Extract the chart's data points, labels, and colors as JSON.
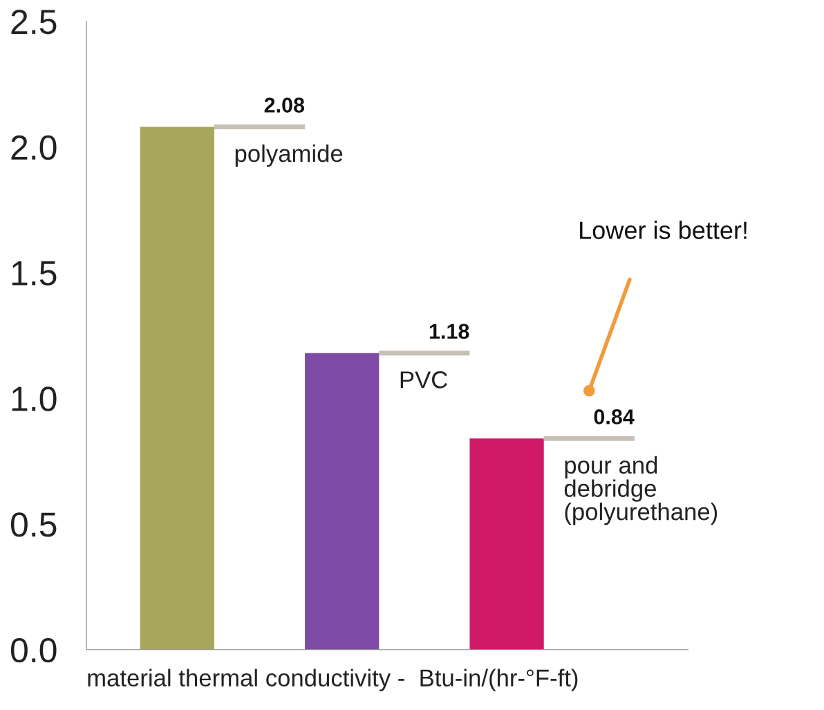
{
  "chart_data": {
    "type": "bar",
    "categories": [
      null,
      null,
      null
    ],
    "values": [
      2.08,
      1.18,
      0.84
    ],
    "colors": [
      "#a8a65c",
      "#7e4ba6",
      "#d01a68"
    ],
    "data_labels": true,
    "xlabel": "material thermal conductivity -  Btu-in/(hr-°F-ft)",
    "ylim": [
      0,
      2.5
    ],
    "yticks": [
      {
        "value": 0,
        "label": "0.0"
      },
      {
        "value": 0.5,
        "label": "0.5"
      },
      {
        "value": 1,
        "label": "1.0"
      },
      {
        "value": 1.5,
        "label": "1.5"
      },
      {
        "value": 2,
        "label": "2.0"
      },
      {
        "value": 2.5,
        "label": "2.5"
      }
    ],
    "annotations": [
      "polyamide",
      "PVC",
      "pour and\ndebridge\n(polyurethane)",
      "Lower is better!"
    ],
    "grid": false,
    "legend": false
  }
}
